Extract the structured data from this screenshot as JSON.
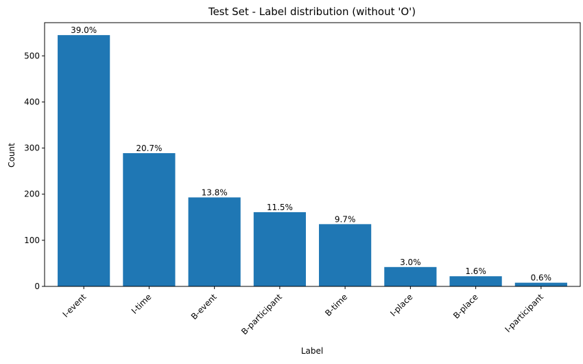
{
  "chart_data": {
    "type": "bar",
    "title": "Test Set - Label distribution (without 'O')",
    "xlabel": "Label",
    "ylabel": "Count",
    "categories": [
      "I-event",
      "I-time",
      "B-event",
      "B-participant",
      "B-time",
      "I-place",
      "B-place",
      "I-participant"
    ],
    "values": [
      545,
      289,
      193,
      161,
      135,
      42,
      22,
      8
    ],
    "data_labels": [
      "39.0%",
      "20.7%",
      "13.8%",
      "11.5%",
      "9.7%",
      "3.0%",
      "1.6%",
      "0.6%"
    ],
    "yticks": [
      0,
      100,
      200,
      300,
      400,
      500
    ],
    "ylim": [
      0,
      572
    ],
    "bar_color": "#1f77b4",
    "grid": false,
    "xtick_rotation": 45
  }
}
